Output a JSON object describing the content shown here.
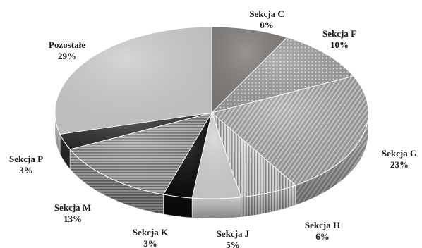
{
  "chart_data": {
    "type": "pie",
    "style": "3d",
    "legend": "none",
    "categories": [
      "Sekcja C",
      "Sekcja F",
      "Sekcja G",
      "Sekcja H",
      "Sekcja J",
      "Sekcja K",
      "Sekcja M",
      "Sekcja P",
      "Pozostałe"
    ],
    "values": [
      8,
      10,
      23,
      6,
      5,
      3,
      13,
      3,
      29
    ],
    "value_labels": [
      "8%",
      "10%",
      "23%",
      "6%",
      "5%",
      "3%",
      "13%",
      "3%",
      "29%"
    ],
    "slice_colors": [
      "#807c79",
      "#a6a6a6",
      "#9a9a9a",
      "#c4c4c4",
      "#d2d2d2",
      "#0d0d0d",
      "#8c8c8c",
      "#2f2f2f",
      "#cdcdcd"
    ],
    "slice_patterns": [
      "solid",
      "dots",
      "diagonal",
      "vertical",
      "solid",
      "solid",
      "horizontal",
      "solid",
      "solid"
    ]
  }
}
